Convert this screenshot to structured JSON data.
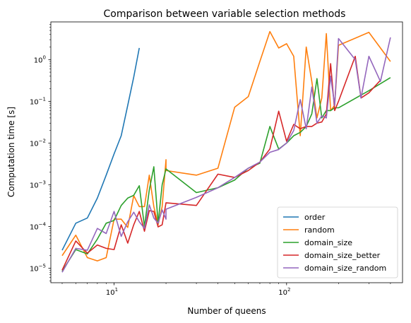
{
  "chart_data": {
    "type": "line",
    "title": "Comparison between variable selection methods",
    "xlabel": "Number of queens",
    "ylabel": "Computation time [s]",
    "xscale": "log",
    "yscale": "log",
    "xlim": [
      4.3,
      470
    ],
    "ylim": [
      4.5e-06,
      8
    ],
    "grid": false,
    "legend_position": "lower-right",
    "x_ticks": [
      {
        "value": 10,
        "base": "10",
        "exp": "1"
      },
      {
        "value": 100,
        "base": "10",
        "exp": "2"
      }
    ],
    "y_ticks": [
      {
        "value": 1e-05,
        "base": "10",
        "exp": "−5"
      },
      {
        "value": 0.0001,
        "base": "10",
        "exp": "−4"
      },
      {
        "value": 0.001,
        "base": "10",
        "exp": "−3"
      },
      {
        "value": 0.01,
        "base": "10",
        "exp": "−2"
      },
      {
        "value": 0.1,
        "base": "10",
        "exp": "−1"
      },
      {
        "value": 1,
        "base": "10",
        "exp": "0"
      }
    ],
    "series": [
      {
        "name": "order",
        "color": "#1f77b4",
        "points": [
          [
            5,
            2.7e-05
          ],
          [
            6,
            0.00012
          ],
          [
            7,
            0.00016
          ],
          [
            8,
            0.00048
          ],
          [
            9,
            0.0017
          ],
          [
            10,
            0.0055
          ],
          [
            11,
            0.015
          ],
          [
            12,
            0.08
          ],
          [
            13,
            0.38
          ],
          [
            14,
            1.9
          ]
        ]
      },
      {
        "name": "random",
        "color": "#ff7f0e",
        "points": [
          [
            5,
            2e-05
          ],
          [
            6,
            6.2e-05
          ],
          [
            7,
            1.8e-05
          ],
          [
            8,
            1.5e-05
          ],
          [
            9,
            1.8e-05
          ],
          [
            10,
            0.00015
          ],
          [
            11,
            0.00015
          ],
          [
            12,
            9.5e-05
          ],
          [
            13,
            0.00055
          ],
          [
            14,
            0.0003
          ],
          [
            15,
            0.0003
          ],
          [
            16,
            0.0017
          ],
          [
            17,
            0.0003
          ],
          [
            18,
            0.00011
          ],
          [
            19,
            0.0003
          ],
          [
            20,
            0.004
          ],
          [
            20,
            0.0022
          ],
          [
            30,
            0.0017
          ],
          [
            40,
            0.0025
          ],
          [
            50,
            0.072
          ],
          [
            60,
            0.13
          ],
          [
            70,
            0.9
          ],
          [
            80,
            4.7
          ],
          [
            90,
            1.9
          ],
          [
            100,
            2.4
          ],
          [
            110,
            1.2
          ],
          [
            120,
            0.015
          ],
          [
            130,
            2.0
          ],
          [
            140,
            0.3
          ],
          [
            150,
            0.04
          ],
          [
            160,
            0.12
          ],
          [
            170,
            4.2
          ],
          [
            180,
            0.06
          ],
          [
            190,
            0.08
          ],
          [
            200,
            2.2
          ],
          [
            300,
            4.5
          ],
          [
            400,
            0.9
          ]
        ]
      },
      {
        "name": "domain_size",
        "color": "#2ca02c",
        "points": [
          [
            5,
            8.5e-06
          ],
          [
            6,
            2.8e-05
          ],
          [
            7,
            2.2e-05
          ],
          [
            8,
            5e-05
          ],
          [
            9,
            0.00012
          ],
          [
            10,
            0.00014
          ],
          [
            11,
            0.00032
          ],
          [
            12,
            0.00048
          ],
          [
            13,
            0.00056
          ],
          [
            14,
            0.00095
          ],
          [
            15,
            0.0001
          ],
          [
            16,
            0.00075
          ],
          [
            17,
            0.0027
          ],
          [
            18,
            0.00012
          ],
          [
            19,
            0.001
          ],
          [
            20,
            0.0024
          ],
          [
            30,
            0.00065
          ],
          [
            40,
            0.00085
          ],
          [
            50,
            0.0013
          ],
          [
            60,
            0.0025
          ],
          [
            70,
            0.0033
          ],
          [
            80,
            0.025
          ],
          [
            90,
            0.0072
          ],
          [
            100,
            0.01
          ],
          [
            110,
            0.015
          ],
          [
            120,
            0.018
          ],
          [
            130,
            0.025
          ],
          [
            140,
            0.05
          ],
          [
            150,
            0.35
          ],
          [
            160,
            0.04
          ],
          [
            170,
            0.06
          ],
          [
            180,
            0.06
          ],
          [
            190,
            0.07
          ],
          [
            200,
            0.07
          ],
          [
            300,
            0.18
          ],
          [
            400,
            0.37
          ]
        ]
      },
      {
        "name": "domain_size_better",
        "color": "#d62728",
        "points": [
          [
            5,
            9e-06
          ],
          [
            6,
            4.5e-05
          ],
          [
            7,
            2.3e-05
          ],
          [
            8,
            3.6e-05
          ],
          [
            9,
            3e-05
          ],
          [
            10,
            2.8e-05
          ],
          [
            11,
            0.00011
          ],
          [
            12,
            4e-05
          ],
          [
            13,
            0.00011
          ],
          [
            14,
            0.00023
          ],
          [
            15,
            7.7e-05
          ],
          [
            16,
            0.00024
          ],
          [
            17,
            0.00023
          ],
          [
            18,
            9.8e-05
          ],
          [
            19,
            0.00011
          ],
          [
            20,
            0.00037
          ],
          [
            30,
            0.00032
          ],
          [
            40,
            0.0018
          ],
          [
            50,
            0.0015
          ],
          [
            60,
            0.0022
          ],
          [
            70,
            0.0035
          ],
          [
            80,
            0.0072
          ],
          [
            90,
            0.058
          ],
          [
            100,
            0.011
          ],
          [
            110,
            0.028
          ],
          [
            120,
            0.022
          ],
          [
            130,
            0.025
          ],
          [
            140,
            0.025
          ],
          [
            150,
            0.03
          ],
          [
            160,
            0.032
          ],
          [
            170,
            0.05
          ],
          [
            180,
            0.8
          ],
          [
            190,
            0.06
          ],
          [
            200,
            0.1
          ],
          [
            250,
            1.2
          ],
          [
            270,
            0.12
          ],
          [
            300,
            0.16
          ],
          [
            350,
            0.32
          ]
        ]
      },
      {
        "name": "domain_size_random",
        "color": "#9467bd",
        "points": [
          [
            5,
            8e-06
          ],
          [
            6,
            3e-05
          ],
          [
            7,
            2.7e-05
          ],
          [
            8,
            9e-05
          ],
          [
            9,
            6.8e-05
          ],
          [
            10,
            0.00023
          ],
          [
            11,
            5.8e-05
          ],
          [
            12,
            0.00013
          ],
          [
            13,
            0.00022
          ],
          [
            14,
            0.00013
          ],
          [
            15,
            9e-05
          ],
          [
            16,
            0.00033
          ],
          [
            17,
            0.00016
          ],
          [
            18,
            0.00012
          ],
          [
            19,
            0.00025
          ],
          [
            20,
            0.00015
          ],
          [
            20,
            0.00026
          ],
          [
            30,
            0.0005
          ],
          [
            40,
            0.00085
          ],
          [
            50,
            0.0015
          ],
          [
            60,
            0.0025
          ],
          [
            70,
            0.0035
          ],
          [
            80,
            0.006
          ],
          [
            90,
            0.007
          ],
          [
            100,
            0.01
          ],
          [
            110,
            0.02
          ],
          [
            120,
            0.11
          ],
          [
            130,
            0.022
          ],
          [
            140,
            0.22
          ],
          [
            150,
            0.03
          ],
          [
            160,
            0.045
          ],
          [
            170,
            0.04
          ],
          [
            180,
            0.4
          ],
          [
            190,
            0.08
          ],
          [
            200,
            3.2
          ],
          [
            250,
            1.0
          ],
          [
            270,
            0.12
          ],
          [
            300,
            1.2
          ],
          [
            350,
            0.3
          ],
          [
            400,
            3.4
          ]
        ]
      }
    ]
  }
}
